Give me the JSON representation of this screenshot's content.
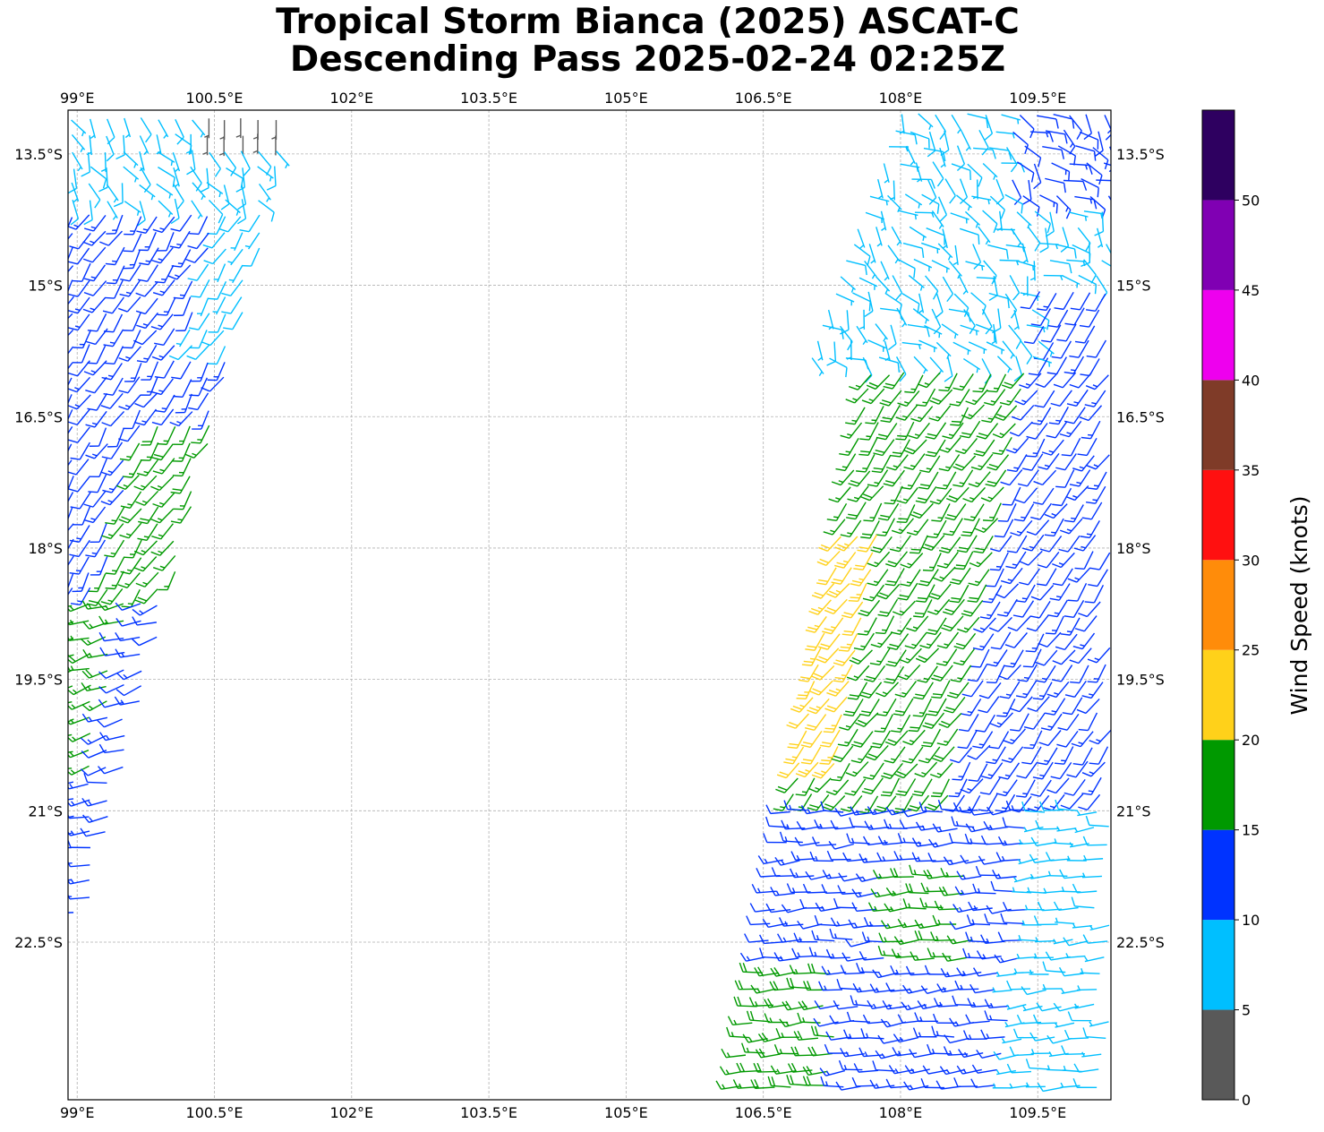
{
  "title": {
    "line1": "Tropical Storm Bianca (2025) ASCAT-C",
    "line2": "Descending Pass 2025-02-24 02:25Z"
  },
  "map": {
    "lon_range": [
      98.9,
      110.3
    ],
    "lat_range": [
      -24.3,
      -13.0
    ],
    "lon_ticks": [
      {
        "value": 99.0,
        "label": "99°E"
      },
      {
        "value": 100.5,
        "label": "100.5°E"
      },
      {
        "value": 102.0,
        "label": "102°E"
      },
      {
        "value": 103.5,
        "label": "103.5°E"
      },
      {
        "value": 105.0,
        "label": "105°E"
      },
      {
        "value": 106.5,
        "label": "106.5°E"
      },
      {
        "value": 108.0,
        "label": "108°E"
      },
      {
        "value": 109.5,
        "label": "109.5°E"
      }
    ],
    "lat_ticks": [
      {
        "value": -13.5,
        "label": "13.5°S"
      },
      {
        "value": -15.0,
        "label": "15°S"
      },
      {
        "value": -16.5,
        "label": "16.5°S"
      },
      {
        "value": -18.0,
        "label": "18°S"
      },
      {
        "value": -19.5,
        "label": "19.5°S"
      },
      {
        "value": -21.0,
        "label": "21°S"
      },
      {
        "value": -22.5,
        "label": "22.5°S"
      }
    ],
    "grid": true,
    "swaths": [
      {
        "name": "west",
        "lon_min": 98.9,
        "lon_max": 101.3,
        "lat_min": -22.3,
        "lat_max": -13.0
      },
      {
        "name": "east",
        "lon_min": 106.3,
        "lon_max": 110.3,
        "lat_min": -24.3,
        "lat_max": -13.0
      }
    ],
    "wind_barbs": "ASCAT-C wind barbs; color by speed class"
  },
  "colorbar": {
    "label": "Wind Speed (knots)",
    "bins": [
      {
        "from": 0,
        "to": 5,
        "color": "#595959"
      },
      {
        "from": 5,
        "to": 10,
        "color": "#00bfff"
      },
      {
        "from": 10,
        "to": 15,
        "color": "#0033ff"
      },
      {
        "from": 15,
        "to": 20,
        "color": "#009900"
      },
      {
        "from": 20,
        "to": 25,
        "color": "#ffd11a"
      },
      {
        "from": 25,
        "to": 30,
        "color": "#ff8c0a"
      },
      {
        "from": 30,
        "to": 35,
        "color": "#ff1010"
      },
      {
        "from": 35,
        "to": 40,
        "color": "#7f3b28"
      },
      {
        "from": 40,
        "to": 45,
        "color": "#ee00ee"
      },
      {
        "from": 45,
        "to": 50,
        "color": "#8000b3"
      },
      {
        "from": 50,
        "to": 55,
        "color": "#2e0060"
      }
    ],
    "tick_labels": [
      "0",
      "5",
      "10",
      "15",
      "20",
      "25",
      "30",
      "35",
      "40",
      "45",
      "50"
    ]
  }
}
